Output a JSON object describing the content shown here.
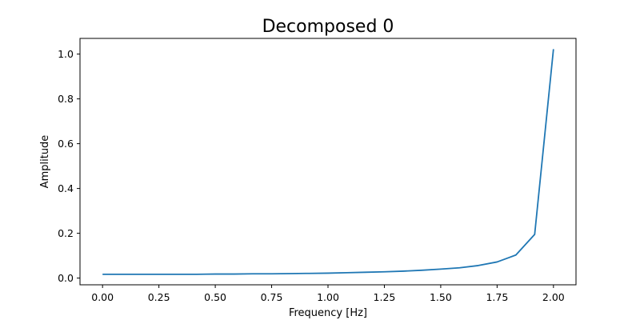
{
  "chart_data": {
    "type": "line",
    "title": "Decomposed 0",
    "xlabel": "Frequency [Hz]",
    "ylabel": "Amplitude",
    "xlim": [
      -0.1,
      2.1
    ],
    "ylim": [
      -0.03,
      1.07
    ],
    "grid": false,
    "x_ticks": [
      0.0,
      0.25,
      0.5,
      0.75,
      1.0,
      1.25,
      1.5,
      1.75,
      2.0
    ],
    "x_tick_labels": [
      "0.00",
      "0.25",
      "0.50",
      "0.75",
      "1.00",
      "1.25",
      "1.50",
      "1.75",
      "2.00"
    ],
    "y_ticks": [
      0.0,
      0.2,
      0.4,
      0.6,
      0.8,
      1.0
    ],
    "y_tick_labels": [
      "0.0",
      "0.2",
      "0.4",
      "0.6",
      "0.8",
      "1.0"
    ],
    "series": [
      {
        "color": "#1f77b4",
        "x": [
          0.0,
          0.0833,
          0.1667,
          0.25,
          0.3333,
          0.4167,
          0.5,
          0.5833,
          0.6667,
          0.75,
          0.8333,
          0.9167,
          1.0,
          1.0833,
          1.1667,
          1.25,
          1.3333,
          1.4167,
          1.5,
          1.5833,
          1.6667,
          1.75,
          1.8333,
          1.9167,
          2.0
        ],
        "y": [
          0.017,
          0.017,
          0.017,
          0.017,
          0.017,
          0.017,
          0.018,
          0.018,
          0.019,
          0.019,
          0.02,
          0.021,
          0.022,
          0.024,
          0.026,
          0.028,
          0.031,
          0.035,
          0.04,
          0.046,
          0.056,
          0.072,
          0.103,
          0.195,
          1.022
        ]
      }
    ]
  }
}
